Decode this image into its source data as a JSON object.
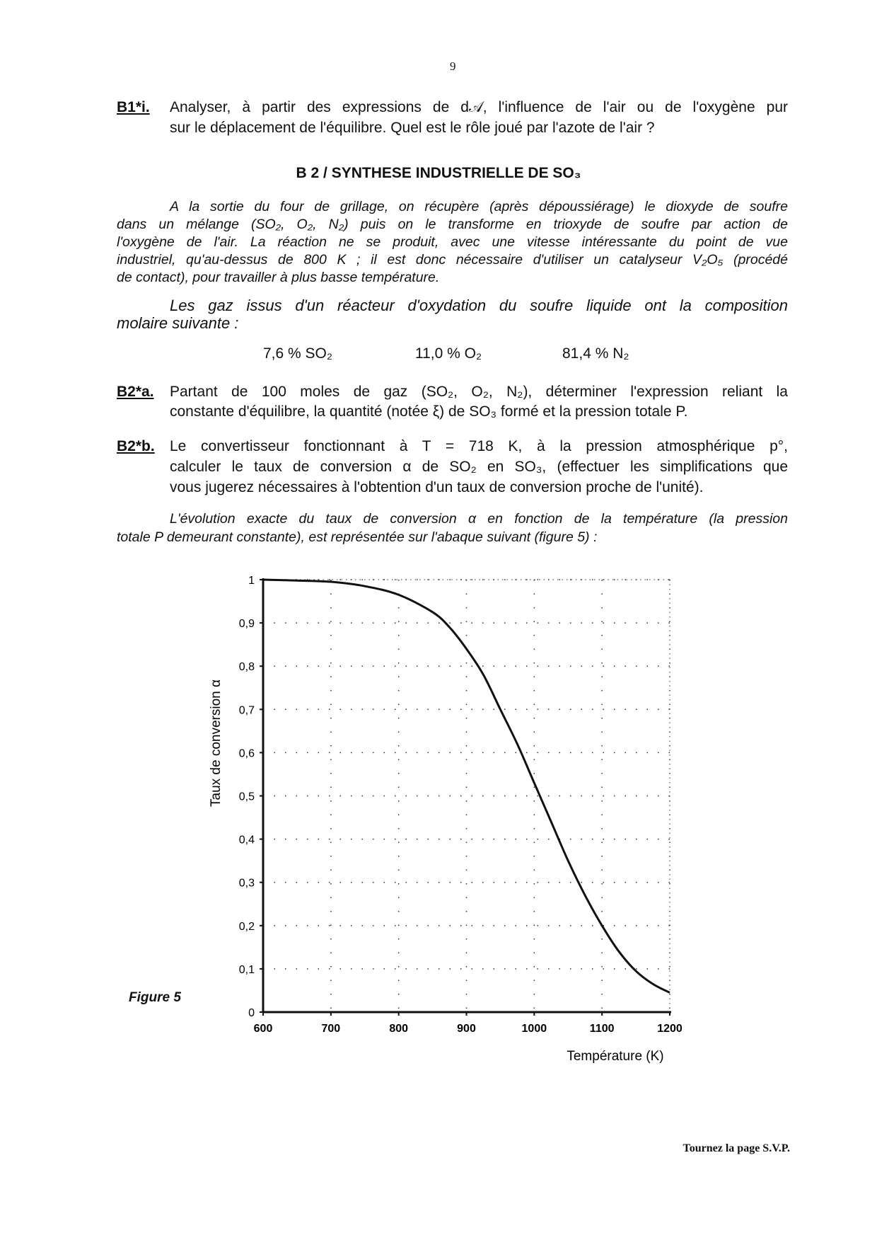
{
  "page_number": "9",
  "b1i": {
    "label": "B1*i.",
    "lines": [
      "Analyser, à partir des expressions de d𝒜, l'influence de l'air ou de l'oxygène pur",
      "sur le déplacement de l'équilibre. Quel est le rôle joué par l'azote de l'air ?"
    ]
  },
  "section_title": "B 2 / SYNTHESE INDUSTRIELLE DE SO₃",
  "intro_lines": [
    "A la sortie du four de grillage, on récupère (après dépoussiérage) le dioxyde de soufre",
    "dans un mélange (SO₂, O₂, N₂) puis on le transforme en trioxyde de soufre par action de",
    "l'oxygène de l'air. La réaction ne se produit, avec une vitesse intéressante du point de vue",
    "industriel, qu'au-dessus de 800 K ; il est donc nécessaire d'utiliser un catalyseur V₂O₅ (procédé",
    "de contact), pour travailler à plus basse température."
  ],
  "gas_lines": [
    "Les gaz issus d'un réacteur d'oxydation du soufre liquide ont la composition",
    "molaire suivante :"
  ],
  "composition": [
    "7,6 % SO₂",
    "11,0 % O₂",
    "81,4 % N₂"
  ],
  "b2a": {
    "label": "B2*a.",
    "lines": [
      "Partant de 100 moles de gaz (SO₂, O₂, N₂), déterminer l'expression reliant la",
      "constante d'équilibre, la quantité (notée ξ) de SO₃ formé et la pression totale P."
    ]
  },
  "b2b": {
    "label": "B2*b.",
    "lines": [
      "Le convertisseur fonctionnant à T = 718 K, à la pression atmosphérique p°,",
      "calculer le taux de conversion α de SO₂ en SO₃, (effectuer les simplifications que",
      "vous jugerez nécessaires à l'obtention d'un taux de conversion proche de l'unité)."
    ]
  },
  "evolution_lines": [
    "L'évolution exacte du taux de conversion α en fonction de la température (la pression",
    "totale P demeurant constante), est représentée sur l'abaque suivant (figure 5) :"
  ],
  "figure_label": "Figure 5",
  "chart_data": {
    "type": "line",
    "xlabel": "Température (K)",
    "ylabel": "Taux de conversion  α",
    "xlim": [
      600,
      1200
    ],
    "ylim": [
      0,
      1
    ],
    "grid": true,
    "x_ticks": [
      "600",
      "700",
      "800",
      "900",
      "1000",
      "1100",
      "1200"
    ],
    "y_ticks": [
      "0",
      "0,1",
      "0,2",
      "0,3",
      "0,4",
      "0,5",
      "0,6",
      "0,7",
      "0,8",
      "0,9",
      "1"
    ],
    "x": [
      600,
      650,
      700,
      750,
      800,
      850,
      875,
      900,
      925,
      950,
      975,
      1000,
      1025,
      1050,
      1075,
      1100,
      1125,
      1150,
      1175,
      1200
    ],
    "y": [
      1.0,
      0.998,
      0.995,
      0.985,
      0.965,
      0.925,
      0.89,
      0.84,
      0.78,
      0.7,
      0.62,
      0.53,
      0.44,
      0.35,
      0.27,
      0.2,
      0.14,
      0.095,
      0.065,
      0.045
    ]
  },
  "footer": "Tournez la page S.V.P."
}
